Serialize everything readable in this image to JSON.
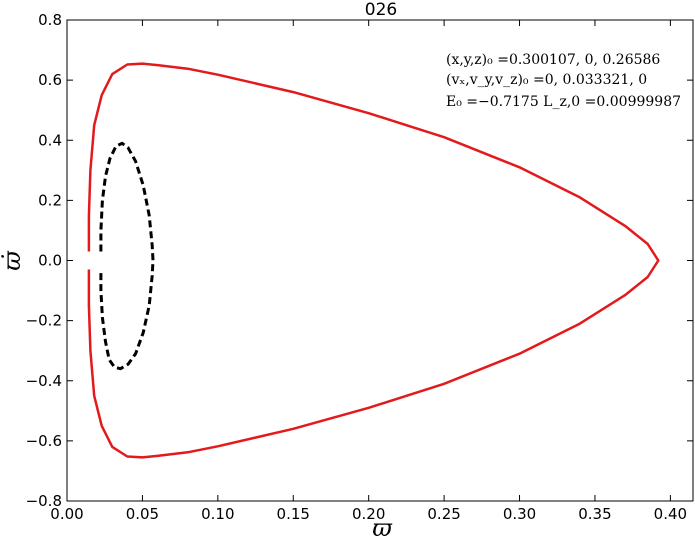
{
  "chart_data": {
    "type": "line",
    "title": "026",
    "xlabel": "ϖ",
    "ylabel": "ϖ̇",
    "xlim": [
      0.0,
      0.415
    ],
    "ylim": [
      -0.8,
      0.8
    ],
    "xticks": [
      0.0,
      0.05,
      0.1,
      0.15,
      0.2,
      0.25,
      0.3,
      0.35,
      0.4
    ],
    "xtick_labels": [
      "0.00",
      "0.05",
      "0.10",
      "0.15",
      "0.20",
      "0.25",
      "0.30",
      "0.35",
      "0.40"
    ],
    "yticks": [
      0.8,
      0.6,
      0.4,
      0.2,
      0.0,
      -0.2,
      -0.4,
      -0.6,
      -0.8
    ],
    "ytick_labels": [
      "0.8",
      "0.6",
      "0.4",
      "0.2",
      "0.0",
      "−0.2",
      "−0.4",
      "−0.6",
      "−0.8"
    ],
    "grid": false,
    "annotations": [
      "(x,y,z)₀ =0.300107, 0, 0.26586",
      "(vₓ,v_y,v_z)₀ =0, 0.033321, 0",
      "E₀ =−0.7175  L_z,0 =0.00999987"
    ],
    "series": [
      {
        "color": "#e31a1c",
        "style": "solid",
        "points": [
          [
            0.0145,
            0.03
          ],
          [
            0.0145,
            0.15
          ],
          [
            0.0155,
            0.3
          ],
          [
            0.018,
            0.45
          ],
          [
            0.023,
            0.55
          ],
          [
            0.03,
            0.62
          ],
          [
            0.04,
            0.652
          ],
          [
            0.05,
            0.655
          ],
          [
            0.06,
            0.65
          ],
          [
            0.08,
            0.638
          ],
          [
            0.1,
            0.618
          ],
          [
            0.15,
            0.56
          ],
          [
            0.2,
            0.49
          ],
          [
            0.25,
            0.41
          ],
          [
            0.3,
            0.31
          ],
          [
            0.34,
            0.21
          ],
          [
            0.37,
            0.115
          ],
          [
            0.385,
            0.055
          ],
          [
            0.392,
            0.0
          ],
          [
            0.385,
            -0.055
          ],
          [
            0.37,
            -0.115
          ],
          [
            0.34,
            -0.21
          ],
          [
            0.3,
            -0.31
          ],
          [
            0.25,
            -0.41
          ],
          [
            0.2,
            -0.49
          ],
          [
            0.15,
            -0.56
          ],
          [
            0.1,
            -0.618
          ],
          [
            0.08,
            -0.638
          ],
          [
            0.06,
            -0.65
          ],
          [
            0.05,
            -0.655
          ],
          [
            0.04,
            -0.652
          ],
          [
            0.03,
            -0.62
          ],
          [
            0.023,
            -0.55
          ],
          [
            0.018,
            -0.45
          ],
          [
            0.0155,
            -0.3
          ],
          [
            0.0145,
            -0.15
          ],
          [
            0.0145,
            -0.03
          ]
        ]
      },
      {
        "color": "#000000",
        "style": "dashed",
        "points": [
          [
            0.0225,
            0.03
          ],
          [
            0.0225,
            0.1
          ],
          [
            0.0235,
            0.2
          ],
          [
            0.0255,
            0.28
          ],
          [
            0.0285,
            0.34
          ],
          [
            0.0325,
            0.38
          ],
          [
            0.0365,
            0.39
          ],
          [
            0.0405,
            0.375
          ],
          [
            0.0455,
            0.33
          ],
          [
            0.0505,
            0.25
          ],
          [
            0.0545,
            0.15
          ],
          [
            0.0565,
            0.05
          ],
          [
            0.057,
            0.0
          ],
          [
            0.0565,
            -0.05
          ],
          [
            0.0545,
            -0.15
          ],
          [
            0.0505,
            -0.24
          ],
          [
            0.0455,
            -0.31
          ],
          [
            0.0405,
            -0.345
          ],
          [
            0.0355,
            -0.36
          ],
          [
            0.0315,
            -0.355
          ],
          [
            0.028,
            -0.33
          ],
          [
            0.0255,
            -0.27
          ],
          [
            0.0235,
            -0.19
          ],
          [
            0.0225,
            -0.1
          ],
          [
            0.0225,
            -0.03
          ]
        ]
      }
    ]
  }
}
